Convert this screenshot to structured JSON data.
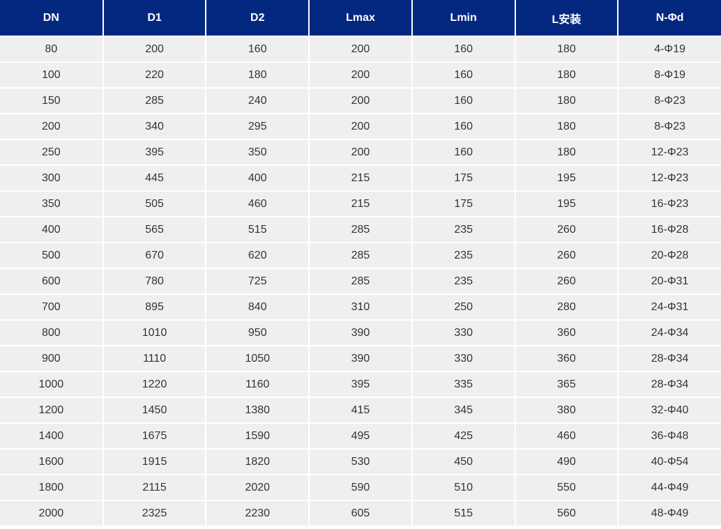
{
  "table": {
    "headers": [
      "DN",
      "D1",
      "D2",
      "Lmax",
      "Lmin",
      "L安装",
      "N-Φd"
    ],
    "rows": [
      [
        "80",
        "200",
        "160",
        "200",
        "160",
        "180",
        "4-Φ19"
      ],
      [
        "100",
        "220",
        "180",
        "200",
        "160",
        "180",
        "8-Φ19"
      ],
      [
        "150",
        "285",
        "240",
        "200",
        "160",
        "180",
        "8-Φ23"
      ],
      [
        "200",
        "340",
        "295",
        "200",
        "160",
        "180",
        "8-Φ23"
      ],
      [
        "250",
        "395",
        "350",
        "200",
        "160",
        "180",
        "12-Φ23"
      ],
      [
        "300",
        "445",
        "400",
        "215",
        "175",
        "195",
        "12-Φ23"
      ],
      [
        "350",
        "505",
        "460",
        "215",
        "175",
        "195",
        "16-Φ23"
      ],
      [
        "400",
        "565",
        "515",
        "285",
        "235",
        "260",
        "16-Φ28"
      ],
      [
        "500",
        "670",
        "620",
        "285",
        "235",
        "260",
        "20-Φ28"
      ],
      [
        "600",
        "780",
        "725",
        "285",
        "235",
        "260",
        "20-Φ31"
      ],
      [
        "700",
        "895",
        "840",
        "310",
        "250",
        "280",
        "24-Φ31"
      ],
      [
        "800",
        "1010",
        "950",
        "390",
        "330",
        "360",
        "24-Φ34"
      ],
      [
        "900",
        "1110",
        "1050",
        "390",
        "330",
        "360",
        "28-Φ34"
      ],
      [
        "1000",
        "1220",
        "1160",
        "395",
        "335",
        "365",
        "28-Φ34"
      ],
      [
        "1200",
        "1450",
        "1380",
        "415",
        "345",
        "380",
        "32-Φ40"
      ],
      [
        "1400",
        "1675",
        "1590",
        "495",
        "425",
        "460",
        "36-Φ48"
      ],
      [
        "1600",
        "1915",
        "1820",
        "530",
        "450",
        "490",
        "40-Φ54"
      ],
      [
        "1800",
        "2115",
        "2020",
        "590",
        "510",
        "550",
        "44-Φ49"
      ],
      [
        "2000",
        "2325",
        "2230",
        "605",
        "515",
        "560",
        "48-Φ49"
      ]
    ]
  },
  "colors": {
    "header_bg": "#04287f",
    "header_text": "#ffffff",
    "cell_bg": "#efefef",
    "cell_text": "#333333"
  }
}
